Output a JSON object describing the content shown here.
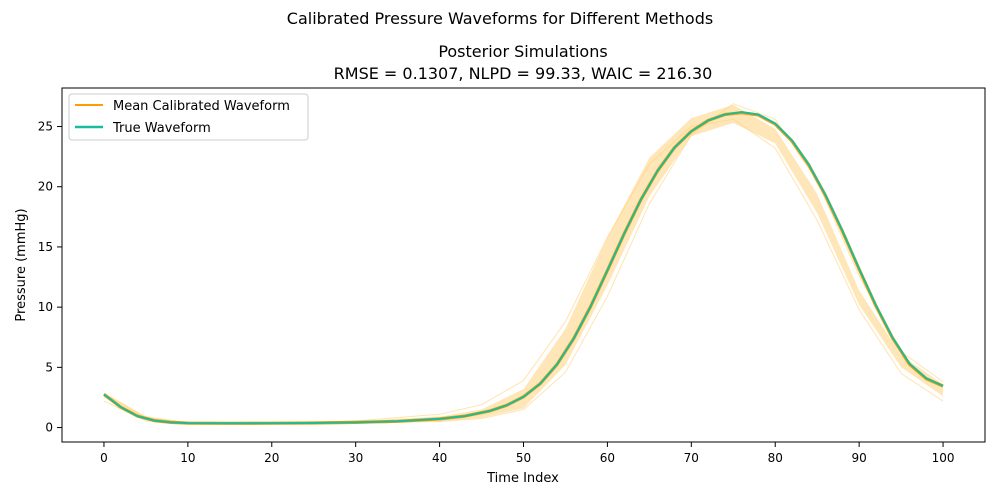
{
  "figure": {
    "suptitle": "Calibrated Pressure Waveforms for Different Methods"
  },
  "chart_data": {
    "type": "line",
    "title": "Posterior Simulations",
    "subtitle": "RMSE = 0.1307, NLPD = 99.33, WAIC = 216.30",
    "xlabel": "Time Index",
    "ylabel": "Pressure (mmHg)",
    "xlim": [
      -5,
      105
    ],
    "ylim": [
      -1.2,
      28.2
    ],
    "xticks": [
      0,
      10,
      20,
      30,
      40,
      50,
      60,
      70,
      80,
      90,
      100
    ],
    "yticks": [
      0,
      5,
      10,
      15,
      20,
      25
    ],
    "grid": false,
    "legend": {
      "position": "top-left",
      "entries": [
        "Mean Calibrated Waveform",
        "True Waveform"
      ]
    },
    "posterior_band": {
      "color": "#ffa500",
      "x": [
        0,
        5,
        10,
        20,
        30,
        40,
        45,
        50,
        55,
        60,
        65,
        70,
        75,
        80,
        85,
        90,
        95,
        100
      ],
      "lower": [
        2.5,
        0.65,
        0.3,
        0.3,
        0.35,
        0.5,
        0.8,
        1.6,
        5.2,
        11.8,
        19.2,
        24.2,
        25.3,
        23.6,
        17.8,
        10.2,
        5.0,
        2.6
      ],
      "upper": [
        2.9,
        0.95,
        0.45,
        0.45,
        0.55,
        0.9,
        1.5,
        3.2,
        8.2,
        15.8,
        22.4,
        25.7,
        26.8,
        24.8,
        19.4,
        11.4,
        6.0,
        3.6
      ]
    },
    "series": [
      {
        "name": "Mean Calibrated Waveform",
        "color": "#ff9d00",
        "x": [
          0,
          2,
          4,
          6,
          8,
          10,
          15,
          20,
          25,
          30,
          35,
          40,
          43,
          46,
          48,
          50,
          52,
          54,
          56,
          58,
          60,
          62,
          64,
          66,
          68,
          70,
          72,
          74,
          76,
          78,
          80,
          82,
          84,
          86,
          88,
          90,
          92,
          94,
          96,
          98,
          100
        ],
        "y": [
          2.75,
          1.7,
          0.95,
          0.58,
          0.43,
          0.37,
          0.35,
          0.36,
          0.38,
          0.43,
          0.52,
          0.72,
          0.95,
          1.38,
          1.85,
          2.55,
          3.65,
          5.25,
          7.4,
          10.05,
          13.05,
          16.1,
          18.95,
          21.35,
          23.25,
          24.6,
          25.5,
          26.0,
          26.15,
          25.95,
          25.2,
          23.8,
          21.8,
          19.25,
          16.3,
          13.15,
          10.1,
          7.4,
          5.25,
          4.05,
          3.45
        ]
      },
      {
        "name": "True Waveform",
        "color": "#1abc9c",
        "x": [
          0,
          2,
          4,
          6,
          8,
          10,
          15,
          20,
          25,
          30,
          35,
          40,
          43,
          46,
          48,
          50,
          52,
          54,
          56,
          58,
          60,
          62,
          64,
          66,
          68,
          70,
          72,
          74,
          76,
          78,
          80,
          82,
          84,
          86,
          88,
          90,
          92,
          94,
          96,
          98,
          100
        ],
        "y": [
          2.75,
          1.7,
          0.95,
          0.58,
          0.43,
          0.37,
          0.35,
          0.36,
          0.38,
          0.43,
          0.52,
          0.72,
          0.95,
          1.38,
          1.85,
          2.55,
          3.65,
          5.25,
          7.4,
          10.05,
          13.05,
          16.1,
          18.95,
          21.35,
          23.25,
          24.6,
          25.5,
          26.0,
          26.2,
          26.0,
          25.25,
          23.85,
          21.85,
          19.3,
          16.35,
          13.2,
          10.15,
          7.45,
          5.3,
          4.1,
          3.45
        ]
      }
    ],
    "outlier_curves": [
      {
        "color": "#ffd27a",
        "x": [
          0,
          5,
          10,
          20,
          30,
          40,
          45,
          50,
          55,
          60,
          65,
          70,
          75,
          80,
          85,
          90,
          95,
          100
        ],
        "y": [
          2.2,
          0.55,
          0.35,
          0.4,
          0.55,
          1.1,
          1.9,
          3.9,
          8.8,
          15.8,
          21.9,
          25.0,
          25.6,
          23.2,
          17.2,
          9.8,
          4.5,
          2.2
        ]
      },
      {
        "color": "#ffd27a",
        "x": [
          0,
          5,
          10,
          20,
          30,
          40,
          45,
          50,
          55,
          60,
          65,
          70,
          75,
          80,
          85,
          90,
          95,
          100
        ],
        "y": [
          2.8,
          0.8,
          0.4,
          0.35,
          0.35,
          0.5,
          0.75,
          1.5,
          4.6,
          10.9,
          18.6,
          24.3,
          26.9,
          25.6,
          20.5,
          12.6,
          6.3,
          3.8
        ]
      }
    ]
  }
}
